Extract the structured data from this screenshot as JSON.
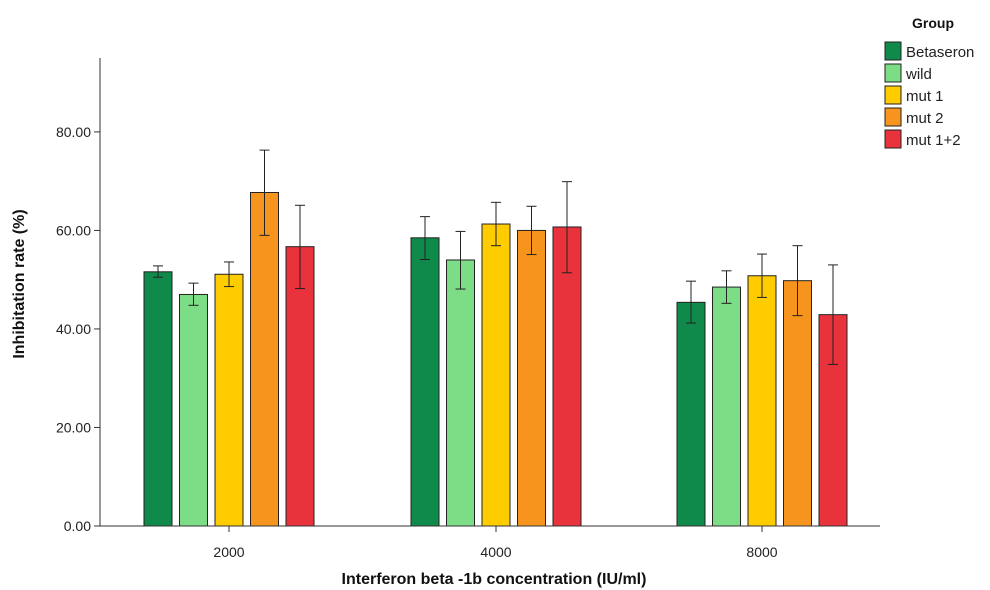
{
  "chart_data": {
    "type": "bar",
    "xlabel": "Interferon beta -1b concentration (IU/ml)",
    "ylabel": "Inhibitation rate (%)",
    "legend_title": "Group",
    "legend_position": "top-right",
    "categories": [
      "2000",
      "4000",
      "8000"
    ],
    "ylim": [
      0,
      95
    ],
    "yticks": [
      0,
      20,
      40,
      60,
      80
    ],
    "ytick_labels": [
      "0.00",
      "20.00",
      "40.00",
      "60.00",
      "80.00"
    ],
    "grid": false,
    "error_bars": true,
    "series": [
      {
        "name": "Betaseron",
        "color": "#0f8a4a",
        "values": [
          51.6,
          58.5,
          45.4
        ],
        "err_low": [
          50.5,
          54.1,
          41.2
        ],
        "err_high": [
          52.8,
          62.8,
          49.7
        ]
      },
      {
        "name": "wild",
        "color": "#7ddc86",
        "values": [
          47.0,
          54.0,
          48.5
        ],
        "err_low": [
          44.8,
          48.1,
          45.2
        ],
        "err_high": [
          49.3,
          59.8,
          51.8
        ]
      },
      {
        "name": "mut 1",
        "color": "#ffcc00",
        "values": [
          51.1,
          61.3,
          50.8
        ],
        "err_low": [
          48.6,
          56.9,
          46.4
        ],
        "err_high": [
          53.6,
          65.7,
          55.2
        ]
      },
      {
        "name": "mut 2",
        "color": "#f7941d",
        "values": [
          67.7,
          60.0,
          49.8
        ],
        "err_low": [
          59.0,
          55.1,
          42.7
        ],
        "err_high": [
          76.3,
          64.9,
          56.9
        ]
      },
      {
        "name": "mut 1+2",
        "color": "#e8323c",
        "values": [
          56.7,
          60.7,
          42.9
        ],
        "err_low": [
          48.2,
          51.4,
          32.8
        ],
        "err_high": [
          65.1,
          69.9,
          53.0
        ]
      }
    ]
  }
}
